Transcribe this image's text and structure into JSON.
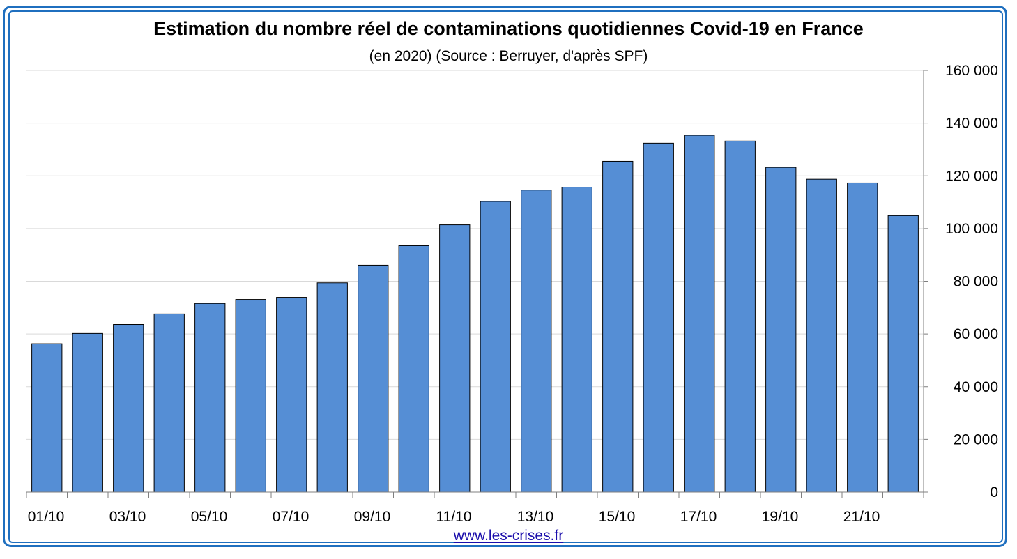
{
  "chart_data": {
    "type": "bar",
    "title": "Estimation du nombre réel de contaminations quotidiennes Covid-19 en France",
    "subtitle": "(en 2020) (Source : Berruyer, d'après SPF)",
    "categories": [
      "01/10",
      "02/10",
      "03/10",
      "04/10",
      "05/10",
      "06/10",
      "07/10",
      "08/10",
      "09/10",
      "10/10",
      "11/10",
      "12/10",
      "13/10",
      "14/10",
      "15/10",
      "16/10",
      "17/10",
      "18/10",
      "19/10",
      "20/10",
      "21/10",
      "22/10"
    ],
    "x_tick_labels": [
      "01/10",
      "",
      "03/10",
      "",
      "05/10",
      "",
      "07/10",
      "",
      "09/10",
      "",
      "11/10",
      "",
      "13/10",
      "",
      "15/10",
      "",
      "17/10",
      "",
      "19/10",
      "",
      "21/10",
      ""
    ],
    "values": [
      56300,
      60200,
      63600,
      67600,
      71600,
      73100,
      73900,
      79400,
      86100,
      93500,
      101400,
      110300,
      114600,
      115700,
      125500,
      132400,
      135400,
      133200,
      123200,
      118700,
      117300,
      104900
    ],
    "ylim": [
      0,
      160000
    ],
    "y_ticks": [
      0,
      20000,
      40000,
      60000,
      80000,
      100000,
      120000,
      140000,
      160000
    ],
    "y_tick_labels": [
      "0",
      "20 000",
      "40 000",
      "60 000",
      "80 000",
      "100 000",
      "120 000",
      "140 000",
      "160 000"
    ],
    "y_axis_side": "right",
    "grid": true,
    "bar_color": "#558ed5",
    "xlabel": "",
    "ylabel": ""
  },
  "footer": {
    "link_text": "www.les-crises.fr"
  },
  "colors": {
    "frame": "#1f6fbf",
    "grid": "#d9d9d9",
    "link": "#1a0dab"
  }
}
